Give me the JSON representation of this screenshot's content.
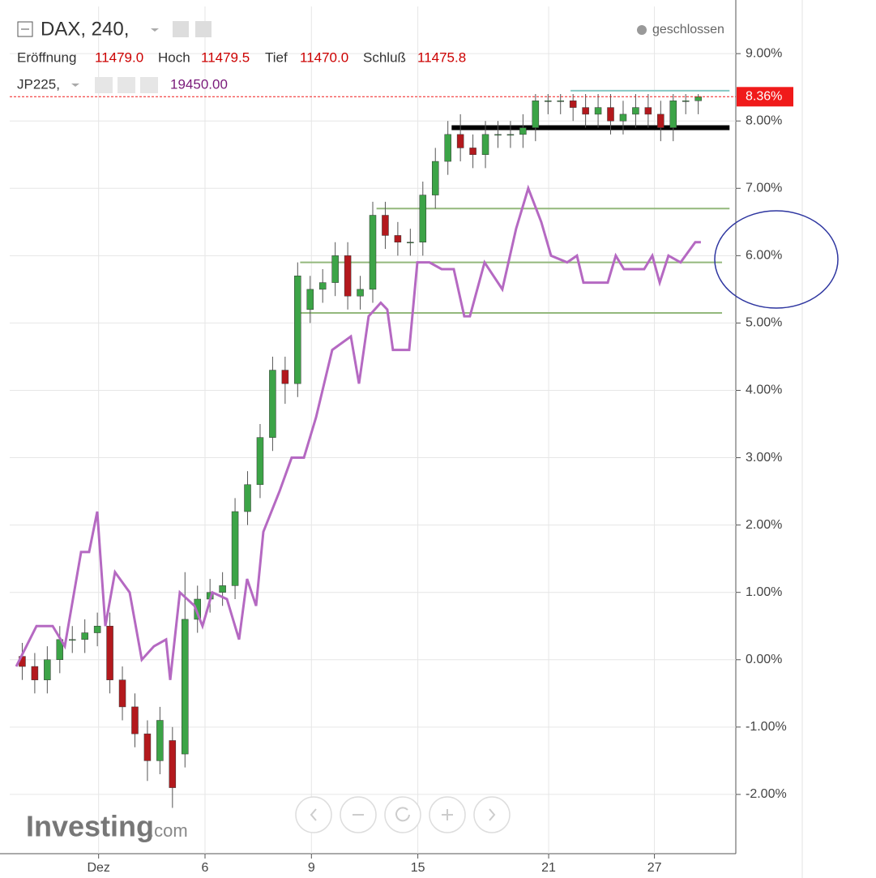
{
  "header": {
    "symbol": "DAX, 240,",
    "status": "geschlossen",
    "ohlc_labels": [
      "Eröffnung",
      "Hoch",
      "Tief",
      "Schluß"
    ],
    "ohlc_values": [
      "11479.0",
      "11479.5",
      "11470.0",
      "11475.8"
    ],
    "compare_symbol": "JP225,",
    "compare_value": "19450.00"
  },
  "watermark": {
    "brand": "Investing",
    "suffix": ".com"
  },
  "chart_data": {
    "type": "candlestick",
    "xlim": [
      0,
      58
    ],
    "ylim": [
      -2.88,
      9.7
    ],
    "xticks": [
      {
        "value": 7.1,
        "label": "Dez"
      },
      {
        "value": 15.6,
        "label": "6"
      },
      {
        "value": 24.1,
        "label": "9"
      },
      {
        "value": 32.6,
        "label": "15"
      },
      {
        "value": 43.05,
        "label": "21"
      },
      {
        "value": 51.5,
        "label": "27"
      }
    ],
    "yticks": [
      {
        "value": -2,
        "label": "-2.00%"
      },
      {
        "value": -1,
        "label": "-1.00%"
      },
      {
        "value": 0,
        "label": "0.00%"
      },
      {
        "value": 1,
        "label": "1.00%"
      },
      {
        "value": 2,
        "label": "2.00%"
      },
      {
        "value": 3,
        "label": "3.00%"
      },
      {
        "value": 4,
        "label": "4.00%"
      },
      {
        "value": 5,
        "label": "5.00%"
      },
      {
        "value": 6,
        "label": "6.00%"
      },
      {
        "value": 7,
        "label": "7.00%"
      },
      {
        "value": 8,
        "label": "8.00%"
      },
      {
        "value": 9,
        "label": "9.00%"
      }
    ],
    "grid": true,
    "candles": {
      "name": "DAX",
      "up_color": "#3ca447",
      "down_color": "#b3191d",
      "x": [
        1,
        2,
        3,
        4,
        5,
        6,
        7,
        8,
        9,
        10,
        11,
        12,
        13,
        14,
        15,
        16,
        17,
        18,
        19,
        20,
        21,
        22,
        23,
        24,
        25,
        26,
        27,
        28,
        29,
        30,
        31,
        32,
        33,
        34,
        35,
        36,
        37,
        38,
        39,
        40,
        41,
        42,
        43,
        44,
        45,
        46,
        47,
        48,
        49,
        50,
        51,
        52,
        53,
        54,
        55
      ],
      "open": [
        0.05,
        -0.1,
        -0.3,
        0.0,
        0.3,
        0.3,
        0.4,
        0.5,
        -0.3,
        -0.7,
        -1.1,
        -1.5,
        -1.2,
        -1.4,
        0.6,
        0.9,
        1.0,
        1.1,
        2.2,
        2.6,
        3.3,
        4.3,
        4.1,
        5.2,
        5.5,
        5.6,
        6.0,
        5.4,
        5.5,
        6.6,
        6.3,
        6.2,
        6.2,
        6.9,
        7.4,
        7.8,
        7.6,
        7.5,
        7.8,
        7.8,
        7.8,
        7.9,
        8.3,
        8.3,
        8.3,
        8.2,
        8.1,
        8.2,
        8.0,
        8.1,
        8.2,
        8.1,
        7.9,
        8.3,
        8.3
      ],
      "high": [
        0.25,
        0.1,
        0.2,
        0.5,
        0.5,
        0.6,
        0.7,
        0.7,
        -0.1,
        -0.5,
        -0.9,
        -0.7,
        -1.0,
        1.3,
        1.1,
        1.2,
        1.3,
        2.4,
        2.8,
        3.5,
        4.5,
        4.5,
        5.9,
        5.7,
        5.8,
        6.2,
        6.2,
        5.7,
        6.8,
        6.8,
        6.5,
        6.4,
        7.1,
        7.6,
        8.0,
        8.1,
        7.8,
        8.0,
        8.0,
        8.0,
        8.1,
        8.4,
        8.4,
        8.4,
        8.4,
        8.4,
        8.4,
        8.4,
        8.3,
        8.4,
        8.4,
        8.3,
        8.4,
        8.4,
        8.4
      ],
      "low": [
        -0.3,
        -0.5,
        -0.5,
        -0.2,
        0.1,
        0.1,
        0.2,
        -0.5,
        -0.9,
        -1.3,
        -1.8,
        -1.7,
        -2.2,
        -1.6,
        0.4,
        0.7,
        0.8,
        0.9,
        2.0,
        2.4,
        3.1,
        3.8,
        3.9,
        5.0,
        5.3,
        5.4,
        5.2,
        5.2,
        5.3,
        6.1,
        6.0,
        6.0,
        6.0,
        6.7,
        7.2,
        7.4,
        7.3,
        7.3,
        7.6,
        7.6,
        7.6,
        7.7,
        8.1,
        8.1,
        8.0,
        7.9,
        7.9,
        7.8,
        7.8,
        7.9,
        7.9,
        7.7,
        7.7,
        8.1,
        8.1
      ],
      "close": [
        -0.1,
        -0.3,
        0.0,
        0.3,
        0.3,
        0.4,
        0.5,
        -0.3,
        -0.7,
        -1.1,
        -1.5,
        -0.9,
        -1.9,
        0.6,
        0.9,
        1.0,
        1.1,
        2.2,
        2.6,
        3.3,
        4.3,
        4.1,
        5.7,
        5.5,
        5.6,
        6.0,
        5.4,
        5.5,
        6.6,
        6.3,
        6.2,
        6.2,
        6.9,
        7.4,
        7.8,
        7.6,
        7.5,
        7.8,
        7.8,
        7.8,
        7.9,
        8.3,
        8.3,
        8.3,
        8.2,
        8.1,
        8.2,
        8.0,
        8.1,
        8.2,
        8.1,
        7.9,
        8.3,
        8.3,
        8.36
      ]
    },
    "compare": {
      "name": "JP225",
      "color": "#b569c2",
      "x": [
        0.52,
        2.14,
        3.43,
        4.4,
        5.7,
        6.34,
        6.99,
        7.64,
        8.41,
        9.58,
        10.55,
        11.52,
        12.49,
        12.82,
        13.59,
        14.76,
        15.4,
        16.18,
        17.35,
        18.32,
        18.96,
        19.68,
        20.26,
        21.55,
        22.52,
        23.5,
        24.47,
        25.76,
        27.25,
        27.9,
        28.67,
        29.64,
        30.16,
        30.61,
        31.26,
        31.91,
        32.56,
        33.53,
        34.5,
        35.47,
        36.31,
        36.76,
        37.93,
        39.35,
        40.45,
        41.42,
        42.46,
        43.24,
        44.53,
        45.31,
        45.83,
        46.8,
        47.77,
        48.41,
        49.06,
        49.71,
        50.68,
        51.33,
        51.92,
        52.62,
        53.59,
        54.76,
        55.21
      ],
      "values": [
        -0.1,
        0.5,
        0.5,
        0.2,
        1.6,
        1.6,
        2.2,
        0.5,
        1.3,
        1.0,
        0.0,
        0.2,
        0.3,
        -0.3,
        1.0,
        0.8,
        0.5,
        1.0,
        0.9,
        0.3,
        1.2,
        0.8,
        1.9,
        2.5,
        3.0,
        3.0,
        3.6,
        4.6,
        4.8,
        4.1,
        5.1,
        5.3,
        5.2,
        4.6,
        4.6,
        4.6,
        5.9,
        5.9,
        5.8,
        5.8,
        5.1,
        5.1,
        5.9,
        5.5,
        6.4,
        7.0,
        6.5,
        6.0,
        5.9,
        6.0,
        5.6,
        5.6,
        5.6,
        6.0,
        5.8,
        5.8,
        5.8,
        6.0,
        5.6,
        6.0,
        5.9,
        6.2,
        6.2
      ]
    },
    "last_price": {
      "value": 8.36,
      "label": "8.36%",
      "color": "#f01a1a"
    },
    "levels": [
      {
        "value": 8.45,
        "from": 44.8,
        "to": 57.5,
        "color": "#86c7c2",
        "width": 2
      },
      {
        "value": 7.9,
        "from": 35.3,
        "to": 57.5,
        "color": "#000000",
        "width": 6
      },
      {
        "value": 6.7,
        "from": 29.3,
        "to": 57.5,
        "color": "#93b87c",
        "width": 2
      },
      {
        "value": 5.9,
        "from": 23.2,
        "to": 56.9,
        "color": "#93b87c",
        "width": 2
      },
      {
        "value": 5.15,
        "from": 23.2,
        "to": 56.9,
        "color": "#93b87c",
        "width": 2
      }
    ]
  }
}
